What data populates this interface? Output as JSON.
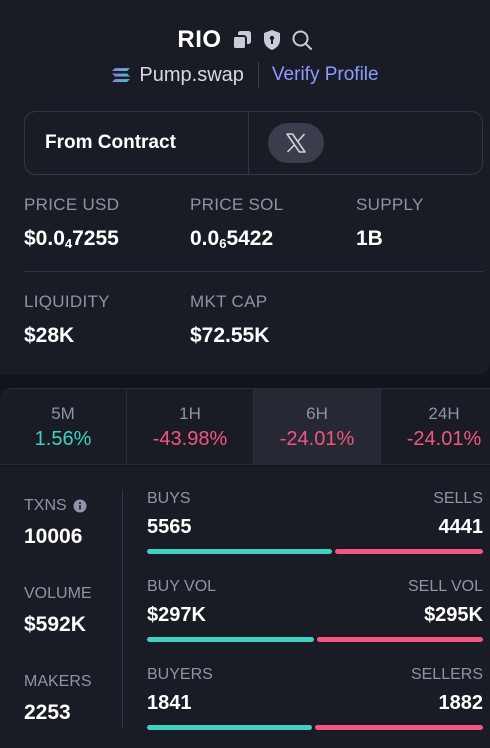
{
  "header": {
    "token_name": "RIO",
    "dex_name": "Pump.swap",
    "verify_label": "Verify Profile"
  },
  "contract": {
    "label": "From Contract"
  },
  "stats": {
    "price_usd_label": "PRICE USD",
    "price_usd_prefix": "$0.0",
    "price_usd_sub": "4",
    "price_usd_rest": "7255",
    "price_sol_label": "PRICE SOL",
    "price_sol_prefix": "0.0",
    "price_sol_sub": "6",
    "price_sol_rest": "5422",
    "supply_label": "SUPPLY",
    "supply_value": "1B",
    "liquidity_label": "LIQUIDITY",
    "liquidity_value": "$28K",
    "mktcap_label": "MKT CAP",
    "mktcap_value": "$72.55K"
  },
  "timeframes": [
    {
      "label": "5M",
      "change": "1.56%",
      "trend": "positive"
    },
    {
      "label": "1H",
      "change": "-43.98%",
      "trend": "negative"
    },
    {
      "label": "6H",
      "change": "-24.01%",
      "trend": "negative",
      "active": true
    },
    {
      "label": "24H",
      "change": "-24.01%",
      "trend": "negative"
    }
  ],
  "activity": {
    "txns_label": "TXNS",
    "txns_value": "10006",
    "volume_label": "VOLUME",
    "volume_value": "$592K",
    "makers_label": "MAKERS",
    "makers_value": "2253",
    "buys_label": "BUYS",
    "buys_value": "5565",
    "sells_label": "SELLS",
    "sells_value": "4441",
    "buy_vol_label": "BUY VOL",
    "buy_vol_value": "$297K",
    "sell_vol_label": "SELL VOL",
    "sell_vol_value": "$295K",
    "buyers_label": "BUYERS",
    "buyers_value": "1841",
    "sellers_label": "SELLERS",
    "sellers_value": "1882",
    "txns_buy_ratio": 0.556,
    "volume_buy_ratio": 0.502,
    "makers_buy_ratio": 0.495
  },
  "colors": {
    "positive": "#3fd1c1",
    "negative": "#f2567f",
    "accent_link": "#8a9cff"
  }
}
